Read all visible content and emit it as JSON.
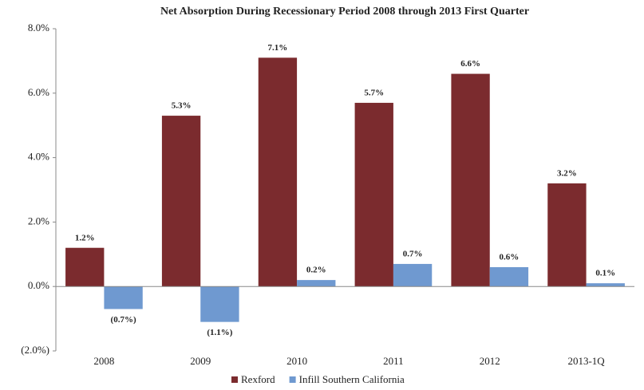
{
  "chart_data": {
    "type": "bar",
    "title": "Net Absorption During Recessionary Period 2008 through 2013 First Quarter",
    "categories": [
      "2008",
      "2009",
      "2010",
      "2011",
      "2012",
      "2013-1Q"
    ],
    "series": [
      {
        "name": "Rexford",
        "color": "#7b2b2e",
        "values": [
          1.2,
          5.3,
          7.1,
          5.7,
          6.6,
          3.2
        ],
        "value_labels": [
          "1.2%",
          "5.3%",
          "7.1%",
          "5.7%",
          "6.6%",
          "3.2%"
        ]
      },
      {
        "name": "Infill Southern California",
        "color": "#6f99d0",
        "values": [
          -0.7,
          -1.1,
          0.2,
          0.7,
          0.6,
          0.1
        ],
        "value_labels": [
          "(0.7%)",
          "(1.1%)",
          "0.2%",
          "0.7%",
          "0.6%",
          "0.1%"
        ]
      }
    ],
    "ylim": [
      -2,
      8
    ],
    "yticks": [
      {
        "value": -2,
        "label": "(2.0%)"
      },
      {
        "value": 0,
        "label": "0.0%"
      },
      {
        "value": 2,
        "label": "2.0%"
      },
      {
        "value": 4,
        "label": "4.0%"
      },
      {
        "value": 6,
        "label": "6.0%"
      },
      {
        "value": 8,
        "label": "8.0%"
      }
    ],
    "legend": "bottom"
  }
}
